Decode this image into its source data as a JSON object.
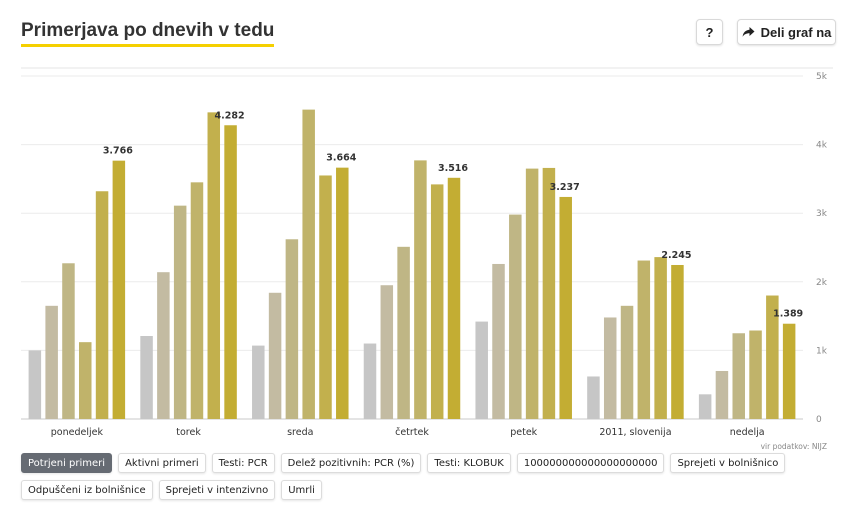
{
  "header": {
    "title": "Primerjava po dnevih v tedu",
    "help_label": "?",
    "share_label": "Deli graf na"
  },
  "source": "vir podatkov: NIJZ",
  "tabs": [
    {
      "label": "Potrjeni primeri",
      "active": true
    },
    {
      "label": "Aktivni primeri",
      "active": false
    },
    {
      "label": "Testi: PCR",
      "active": false
    },
    {
      "label": "Delež pozitivnih: PCR (%)",
      "active": false
    },
    {
      "label": "Testi: KLOBUK",
      "active": false
    },
    {
      "label": "100000000000000000000",
      "active": false
    },
    {
      "label": "Sprejeti v bolnišnico",
      "active": false
    },
    {
      "label": "Odpuščeni iz bolnišnice",
      "active": false
    },
    {
      "label": "Sprejeti v intenzivno",
      "active": false
    },
    {
      "label": "Umrli",
      "active": false
    }
  ],
  "chart_data": {
    "type": "bar",
    "categories": [
      "ponedeljek",
      "torek",
      "sreda",
      "četrtek",
      "petek",
      "2011, slovenija",
      "nedelja"
    ],
    "ylim": [
      0,
      5000
    ],
    "yticks": [
      {
        "value": 0,
        "label": "0"
      },
      {
        "value": 1000,
        "label": "1k"
      },
      {
        "value": 2000,
        "label": "2k"
      },
      {
        "value": 3000,
        "label": "3k"
      },
      {
        "value": 4000,
        "label": "4k"
      },
      {
        "value": 5000,
        "label": "5k"
      }
    ],
    "grid": true,
    "series_colors": [
      "#c6c6c6",
      "#c3bba2",
      "#bfb685",
      "#c0b36a",
      "#c2b04d",
      "#c3ad33",
      "#c4ab22"
    ],
    "values": [
      [
        1000,
        1650,
        2270,
        1120,
        3320,
        3766
      ],
      [
        1210,
        2140,
        3110,
        3450,
        4470,
        4282
      ],
      [
        1070,
        1840,
        2620,
        4510,
        3550,
        3664
      ],
      [
        1100,
        1950,
        2510,
        3770,
        3420,
        3516
      ],
      [
        1420,
        2260,
        2980,
        3650,
        3660,
        3237
      ],
      [
        620,
        1480,
        1650,
        2310,
        2360,
        2245
      ],
      [
        360,
        700,
        1250,
        1290,
        1800,
        1389
      ]
    ],
    "data_labels": [
      "3.766",
      "4.282",
      "3.664",
      "3.516",
      "3.237",
      "2.245",
      "1.389"
    ]
  }
}
